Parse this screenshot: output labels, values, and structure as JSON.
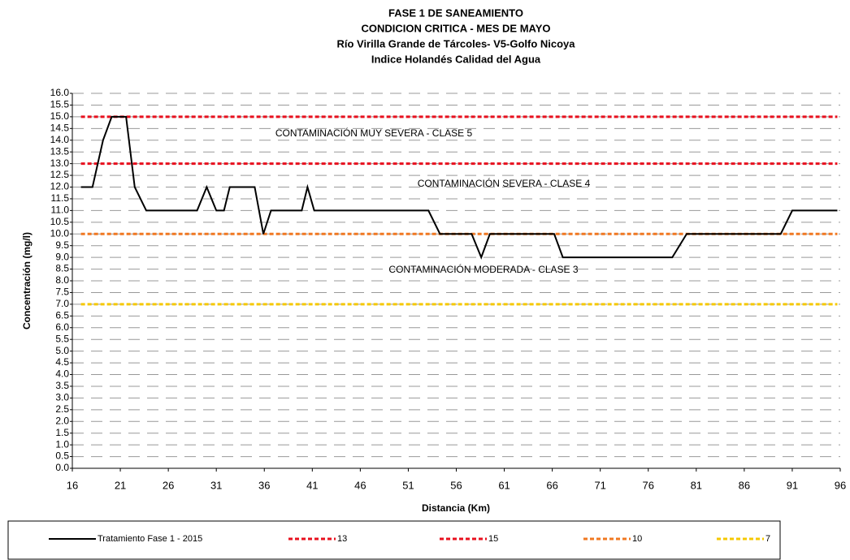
{
  "chart_data": {
    "type": "line",
    "title": [
      "FASE 1 DE SANEAMIENTO",
      "CONDICION CRITICA - MES DE MAYO",
      "Río Virilla Grande de Tárcoles- V5-Golfo Nicoya",
      "Indice Holandés  Calidad del Agua"
    ],
    "x_label": "Distancia (Km)",
    "y_label": "Concentración (mg/l)",
    "annotations": [
      "CONTAMINACIÓN MUY SEVERA - CLASE 5",
      "CONTAMINACIÓN SEVERA - CLASE 4",
      "CONTAMINACIÓN MODERADA - CLASE 3"
    ],
    "xlim": [
      16,
      96
    ],
    "xticks": [
      16,
      21,
      26,
      31,
      36,
      41,
      46,
      51,
      56,
      61,
      66,
      71,
      76,
      81,
      86,
      91,
      96
    ],
    "ylim": [
      0,
      16
    ],
    "yticks": [
      {
        "value": 0,
        "label": "0.0"
      },
      {
        "value": 0.5,
        "label": "0.5"
      },
      {
        "value": 1,
        "label": "1.0"
      },
      {
        "value": 1.5,
        "label": "1.5"
      },
      {
        "value": 2,
        "label": "2.0"
      },
      {
        "value": 2.5,
        "label": "2.5"
      },
      {
        "value": 3,
        "label": "3.0"
      },
      {
        "value": 3.5,
        "label": "3.5"
      },
      {
        "value": 4,
        "label": "4.0"
      },
      {
        "value": 4.5,
        "label": "4.5"
      },
      {
        "value": 5,
        "label": "5.0"
      },
      {
        "value": 5.5,
        "label": "5.5"
      },
      {
        "value": 6,
        "label": "6.0"
      },
      {
        "value": 6.5,
        "label": "6.5"
      },
      {
        "value": 7,
        "label": "7.0"
      },
      {
        "value": 7.5,
        "label": "7.5"
      },
      {
        "value": 8,
        "label": "8.0"
      },
      {
        "value": 8.5,
        "label": "8.5"
      },
      {
        "value": 9,
        "label": "9.0"
      },
      {
        "value": 9.5,
        "label": "9.5"
      },
      {
        "value": 10,
        "label": "10.0"
      },
      {
        "value": 10.5,
        "label": "10.5"
      },
      {
        "value": 11,
        "label": "11.0"
      },
      {
        "value": 11.5,
        "label": "11.5"
      },
      {
        "value": 12,
        "label": "12.0"
      },
      {
        "value": 12.5,
        "label": "12.5"
      },
      {
        "value": 13,
        "label": "13.0"
      },
      {
        "value": 13.5,
        "label": "13.5"
      },
      {
        "value": 14,
        "label": "14.0"
      },
      {
        "value": 14.5,
        "label": "14.5"
      },
      {
        "value": 15,
        "label": "15.0"
      },
      {
        "value": 15.5,
        "label": "15.5"
      },
      {
        "value": 16,
        "label": "16.0"
      }
    ],
    "grid": true,
    "series": [
      {
        "name": "Tratamiento Fase 1 - 2015",
        "color": "#000000",
        "dashed": false,
        "x": [
          16.9,
          18.1,
          19.2,
          20.1,
          21.6,
          22.5,
          23.7,
          29,
          30,
          31,
          31.8,
          32.4,
          35,
          35.9,
          36.7,
          39.9,
          40.5,
          41.2,
          53.1,
          54.3,
          57.6,
          58.6,
          59.5,
          66.2,
          67.1,
          78.5,
          80,
          89.8,
          91,
          95.7
        ],
        "values": [
          12,
          12,
          14,
          15,
          15,
          12,
          11,
          11,
          12,
          11,
          11,
          12,
          12,
          10,
          11,
          11,
          12,
          11,
          11,
          10,
          10,
          9,
          10,
          10,
          9,
          9,
          10,
          10,
          11,
          11
        ]
      },
      {
        "name": "13",
        "color": "#e8101e",
        "dashed": true,
        "x": [
          16.9,
          95.7
        ],
        "values": [
          13,
          13
        ]
      },
      {
        "name": "15",
        "color": "#e8101e",
        "dashed": true,
        "x": [
          16.9,
          95.7
        ],
        "values": [
          15,
          15
        ]
      },
      {
        "name": "10",
        "color": "#f07822",
        "dashed": true,
        "x": [
          16.9,
          95.7
        ],
        "values": [
          10,
          10
        ]
      },
      {
        "name": "7",
        "color": "#f5c800",
        "dashed": true,
        "x": [
          16.9,
          95.7
        ],
        "values": [
          7,
          7
        ]
      }
    ]
  }
}
